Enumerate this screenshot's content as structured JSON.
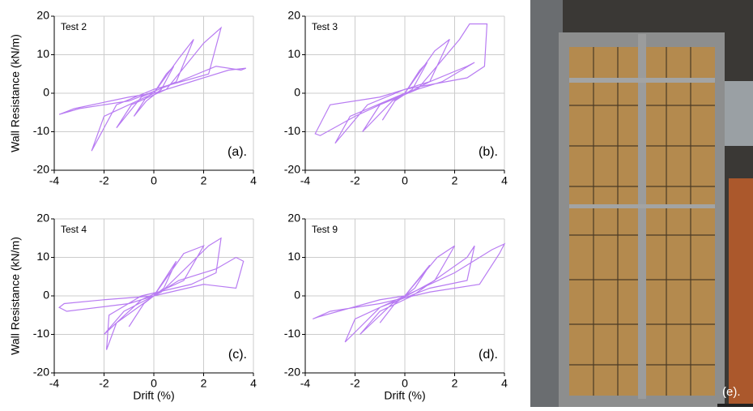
{
  "chart_data": [
    {
      "type": "line",
      "label": "Test 2",
      "panel": "(a).",
      "ylabel": "Wall Resistance (kN/m)",
      "xlim": [
        -4,
        4
      ],
      "ylim": [
        -20,
        20
      ],
      "xticks": [
        -4,
        -2,
        0,
        2,
        4
      ],
      "yticks": [
        -20,
        -10,
        0,
        10,
        20
      ],
      "grid": true,
      "color": "#b87cf2",
      "x": [
        0,
        0.5,
        0.8,
        0.3,
        -0.3,
        -0.8,
        -0.3,
        0,
        1,
        1.6,
        0.9,
        -0.5,
        -1.5,
        -0.9,
        0.5,
        2.0,
        2.7,
        2.2,
        0,
        -1.5,
        -2.5,
        -2.0,
        0,
        1.5,
        3.0,
        3.7,
        3.5,
        2.5,
        1,
        -1,
        -3,
        -3.8,
        -3.2,
        -1,
        0
      ],
      "values": [
        0,
        5,
        7,
        1,
        -2,
        -6,
        -1,
        0,
        9,
        14,
        3,
        -1,
        -9,
        -3,
        1,
        13,
        17,
        5,
        1,
        -3,
        -15,
        -6,
        0,
        3,
        6,
        6.5,
        6,
        7,
        3,
        -2,
        -4,
        -5.5,
        -4,
        -1,
        0
      ]
    },
    {
      "type": "line",
      "label": "Test 3",
      "panel": "(b).",
      "xlim": [
        -4,
        4
      ],
      "ylim": [
        -20,
        20
      ],
      "xticks": [
        -4,
        -2,
        0,
        2,
        4
      ],
      "yticks": [
        -20,
        -10,
        0,
        10,
        20
      ],
      "grid": true,
      "color": "#b87cf2",
      "x": [
        0,
        0.6,
        0.9,
        0.3,
        -0.4,
        -0.9,
        -0.3,
        0,
        1.2,
        1.8,
        1.0,
        -0.5,
        -1.7,
        -1.0,
        0.5,
        2.2,
        2.6,
        3.3,
        3.2,
        2.5,
        0,
        -1.5,
        -2.8,
        -2.2,
        0,
        1.5,
        2.8,
        2.5,
        1,
        -1,
        -3,
        -3.6,
        -3.4,
        -2,
        0
      ],
      "values": [
        0,
        6,
        8,
        1,
        -2,
        -7,
        -1,
        0,
        11,
        14,
        3,
        -2,
        -10,
        -3,
        1,
        14,
        18,
        18,
        7,
        4,
        1,
        -3,
        -13,
        -6,
        0,
        3,
        8,
        7,
        3,
        -1,
        -3,
        -10.5,
        -11,
        -6,
        0
      ]
    },
    {
      "type": "line",
      "label": "Test 4",
      "panel": "(c).",
      "ylabel": "Wall Resistance (kN/m)",
      "xlabel": "Drift (%)",
      "xlim": [
        -4,
        4
      ],
      "ylim": [
        -20,
        20
      ],
      "xticks": [
        -4,
        -2,
        0,
        2,
        4
      ],
      "yticks": [
        -20,
        -10,
        0,
        10,
        20
      ],
      "grid": true,
      "color": "#b87cf2",
      "x": [
        0,
        0.5,
        0.9,
        0.4,
        -0.4,
        -1.0,
        -0.4,
        0,
        1.2,
        2.0,
        1.2,
        -0.5,
        -2,
        -1.2,
        0.3,
        2.2,
        2.7,
        2.5,
        1.5,
        -0.5,
        -1.8,
        -1.9,
        -1.5,
        0,
        1,
        2.5,
        3.3,
        3.6,
        3.3,
        2,
        0,
        -2,
        -3.6,
        -3.8,
        -3.5,
        -1,
        0
      ],
      "values": [
        0,
        5,
        9,
        2,
        -2,
        -8,
        -2,
        0,
        11,
        13,
        4,
        -1,
        -10,
        -4,
        1,
        13,
        15,
        6,
        3,
        0,
        -5,
        -14,
        -7,
        0,
        4,
        7,
        10,
        9,
        2,
        3,
        0,
        -1,
        -2,
        -3,
        -4,
        -2,
        0
      ]
    },
    {
      "type": "line",
      "label": "Test 9",
      "panel": "(d).",
      "xlabel": "Drift (%)",
      "xlim": [
        -4,
        4
      ],
      "ylim": [
        -20,
        20
      ],
      "xticks": [
        -4,
        -2,
        0,
        2,
        4
      ],
      "yticks": [
        -20,
        -10,
        0,
        10,
        20
      ],
      "grid": true,
      "color": "#b87cf2",
      "x": [
        0,
        0.5,
        1.0,
        0.4,
        -0.4,
        -1.0,
        -0.4,
        0,
        1.3,
        2.0,
        1.2,
        -0.5,
        -1.8,
        -1.0,
        0.3,
        2.5,
        2.8,
        2.5,
        1,
        -1,
        -2.4,
        -2.0,
        0,
        2,
        3.5,
        4,
        3.8,
        3,
        1,
        -1,
        -3,
        -3.7,
        -3.5,
        -1,
        0
      ],
      "values": [
        0,
        4,
        8,
        2,
        -2,
        -7,
        -2,
        0,
        10,
        13,
        4,
        -2,
        -10,
        -4,
        0,
        10,
        13,
        4,
        2,
        -3,
        -12,
        -6,
        0,
        6,
        12,
        13.5,
        11,
        3,
        1,
        -2,
        -4,
        -6,
        -5.5,
        -1,
        0
      ]
    }
  ],
  "photo": {
    "label": "(e)."
  }
}
